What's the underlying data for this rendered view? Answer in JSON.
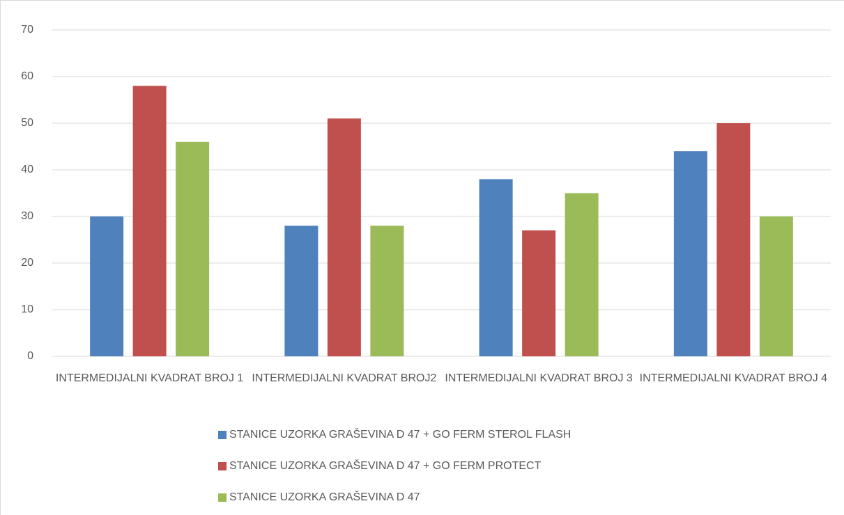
{
  "chart_data": {
    "type": "bar",
    "categories": [
      "INTERMEDIJALNI KVADRAT BROJ 1",
      "INTERMEDIJALNI KVADRAT BROJ2",
      "INTERMEDIJALNI KVADRAT BROJ 3",
      "INTERMEDIJALNI KVADRAT BROJ 4"
    ],
    "series": [
      {
        "name": "STANICE UZORKA GRAŠEVINA D 47 + GO FERM STEROL FLASH",
        "color": "#4f81bd",
        "values": [
          30,
          28,
          38,
          44
        ]
      },
      {
        "name": "STANICE UZORKA GRAŠEVINA D 47 + GO FERM PROTECT",
        "color": "#c0504d",
        "values": [
          58,
          51,
          27,
          50
        ]
      },
      {
        "name": "STANICE UZORKA GRAŠEVINA D 47",
        "color": "#9bbb59",
        "values": [
          46,
          28,
          35,
          30
        ]
      }
    ],
    "ylim": [
      0,
      70
    ],
    "yticks": [
      0,
      10,
      20,
      30,
      40,
      50,
      60,
      70
    ],
    "grid": true,
    "legend": "bottom"
  }
}
